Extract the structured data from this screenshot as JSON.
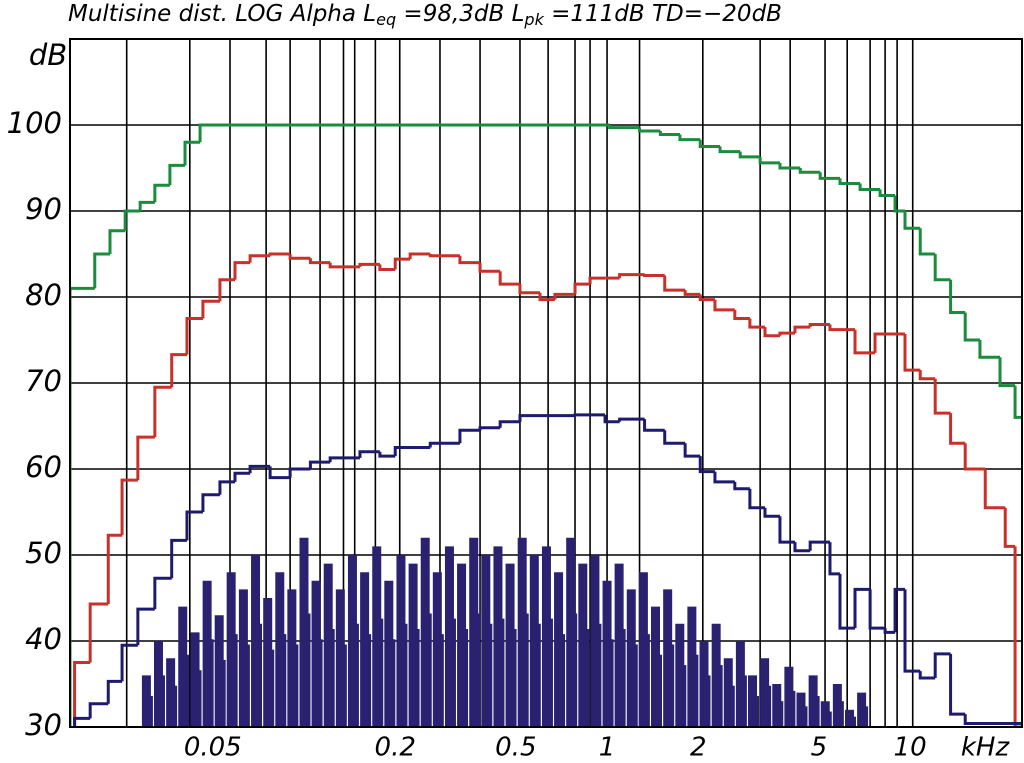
{
  "chart_data": {
    "type": "step",
    "title_parts": [
      "Multisine dist. LOG Alpha L",
      "eq",
      " =98,3dB  L",
      "pk",
      " =111dB TD=−20dB"
    ],
    "y_label": "dB",
    "x_label": "kHz",
    "log_x": true,
    "grid": true,
    "xlim": [
      0.0169,
      23.4
    ],
    "ylim": [
      30,
      110
    ],
    "xticks": [
      0.05,
      0.2,
      0.5,
      1,
      2,
      5,
      10
    ],
    "yticks": [
      30,
      40,
      50,
      60,
      70,
      80,
      90,
      100
    ],
    "xgrid": [
      0.026,
      0.042,
      0.057,
      0.075,
      0.09,
      0.113,
      0.135,
      0.147,
      0.172,
      0.207,
      0.281,
      0.381,
      0.516,
      0.639,
      0.784,
      0.879,
      1,
      1.28,
      2.07,
      3.2,
      4.02,
      5.24,
      6.2,
      7.38,
      8.27,
      9.06,
      10.2
    ],
    "series": [
      {
        "color": "#1a8c3c",
        "x": [
          0.0169,
          0.0204,
          0.0229,
          0.0257,
          0.0288,
          0.0322,
          0.0361,
          0.0405,
          0.0454,
          1.02,
          1.28,
          1.5,
          1.74,
          2.03,
          2.36,
          2.75,
          3.2,
          3.72,
          4.34,
          5.05,
          5.87,
          6.84,
          7.96,
          8.92,
          9.62,
          10.8,
          12.1,
          13.6,
          15.2,
          17,
          19.8,
          22.2
        ],
        "values": [
          81,
          85,
          87.7,
          90,
          91,
          93,
          95.3,
          98,
          100,
          99.7,
          99.3,
          98.9,
          98.3,
          97.5,
          96.9,
          96.3,
          95.6,
          95,
          94.5,
          93.8,
          93.2,
          92.5,
          91.8,
          90,
          88,
          85,
          82,
          78.2,
          75,
          73,
          69.7,
          66
        ]
      },
      {
        "color": "#c8302a",
        "x": [
          0.0175,
          0.0197,
          0.0226,
          0.0251,
          0.0283,
          0.0322,
          0.0366,
          0.0411,
          0.0464,
          0.0528,
          0.0592,
          0.0664,
          0.0773,
          0.09,
          0.105,
          0.122,
          0.153,
          0.178,
          0.2,
          0.224,
          0.261,
          0.327,
          0.381,
          0.444,
          0.516,
          0.601,
          0.673,
          0.784,
          0.879,
          0.985,
          1.1,
          1.33,
          1.55,
          1.81,
          2.03,
          2.27,
          2.64,
          2.96,
          3.32,
          3.72,
          4.17,
          4.68,
          5.44,
          6.58,
          7.66,
          9.62,
          10.8,
          12.1,
          13.6,
          15.2,
          17.7,
          20.6,
          22.2
        ],
        "values": [
          37.5,
          44.3,
          52.3,
          58.7,
          63.7,
          69.5,
          73.3,
          77.5,
          79.5,
          82,
          84,
          84.8,
          85,
          84.5,
          84,
          83.5,
          83.8,
          83.2,
          84.4,
          85,
          84.8,
          84,
          83,
          81.5,
          80.5,
          79.7,
          80.3,
          81.5,
          82.2,
          82.2,
          82.6,
          82.5,
          80.8,
          80.3,
          79.7,
          78.5,
          77.5,
          76.5,
          75.5,
          75.8,
          76.5,
          76.8,
          76.2,
          73.5,
          75.7,
          71.5,
          70.5,
          66.5,
          63,
          60,
          55.5,
          51,
          30
        ]
      },
      {
        "color": "#1e1a6e",
        "x": [
          0.0175,
          0.0197,
          0.0226,
          0.0251,
          0.0283,
          0.0322,
          0.0366,
          0.0411,
          0.0464,
          0.0528,
          0.0592,
          0.0664,
          0.0773,
          0.09,
          0.105,
          0.122,
          0.153,
          0.178,
          0.2,
          0.261,
          0.327,
          0.381,
          0.444,
          0.516,
          0.784,
          0.985,
          1.1,
          1.33,
          1.55,
          1.81,
          2.03,
          2.27,
          2.64,
          2.96,
          3.32,
          3.72,
          4.17,
          4.68,
          5.44,
          5.87,
          6.58,
          7.38,
          8.27,
          8.92,
          9.62,
          10.8,
          12.1,
          13.6,
          15.2
        ],
        "values": [
          31,
          32.7,
          35.3,
          39.5,
          43.7,
          47.3,
          51.7,
          55,
          57,
          58.5,
          59.5,
          60.3,
          59,
          60,
          60.8,
          61.3,
          62,
          61.5,
          62.5,
          63,
          64.5,
          64.8,
          65.5,
          66.2,
          66.3,
          65.5,
          65.8,
          64.5,
          63,
          61.5,
          59.7,
          58.5,
          57.7,
          55.5,
          54.5,
          51.5,
          50.5,
          51.5,
          47.8,
          41.5,
          46,
          41.5,
          41,
          46,
          36.5,
          35.7,
          38.5,
          31.5,
          30.4
        ]
      }
    ],
    "spectrum": {
      "type": "bar",
      "color": "#2a2170",
      "x": [
        0.0302,
        0.0331,
        0.0363,
        0.0398,
        0.0437,
        0.0479,
        0.0525,
        0.0575,
        0.0631,
        0.0692,
        0.0759,
        0.0832,
        0.0912,
        0.1,
        0.1096,
        0.1202,
        0.1318,
        0.1445,
        0.1585,
        0.1738,
        0.1905,
        0.2089,
        0.2291,
        0.2512,
        0.2754,
        0.302,
        0.3311,
        0.3631,
        0.3981,
        0.4365,
        0.4786,
        0.5248,
        0.5754,
        0.631,
        0.6918,
        0.7586,
        0.8318,
        0.912,
        1,
        1.096,
        1.202,
        1.318,
        1.445,
        1.585,
        1.738,
        1.905,
        2.089,
        2.291,
        2.512,
        2.754,
        3.02,
        3.311,
        3.631,
        3.981,
        4.365,
        4.786,
        5.248,
        5.754,
        6.31,
        6.918
      ],
      "values": [
        36,
        40,
        38,
        44,
        41,
        47,
        43,
        48,
        46,
        50,
        45,
        48,
        46,
        52,
        47,
        49,
        46,
        50,
        48,
        51,
        47,
        50,
        49,
        52,
        48,
        51,
        49,
        52,
        50,
        51,
        49,
        52,
        50,
        51,
        48,
        52,
        49,
        50,
        47,
        49,
        46,
        48,
        44,
        46,
        42,
        44,
        40,
        42,
        38,
        40,
        36,
        38,
        35,
        37,
        34,
        36,
        33,
        35,
        32,
        34
      ]
    }
  }
}
